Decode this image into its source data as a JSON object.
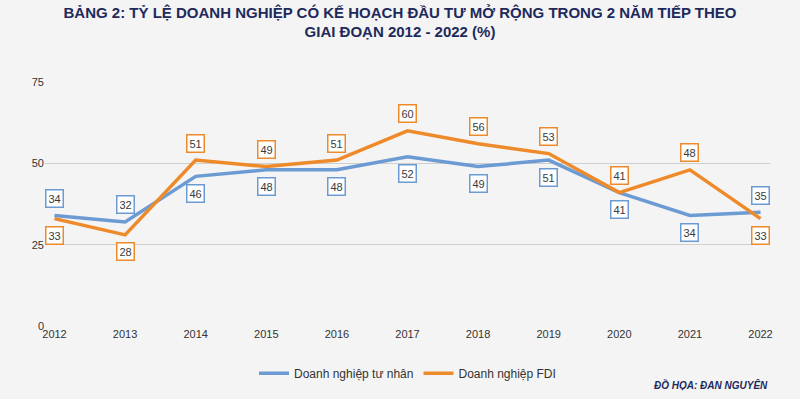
{
  "chart_data": {
    "type": "line",
    "title": "BẢNG 2: TỶ LỆ DOANH NGHIỆP CÓ KẾ HOẠCH ĐẦU TƯ MỞ RỘNG TRONG 2 NĂM TIẾP THEO",
    "subtitle": "GIAI ĐOẠN 2012 - 2022 (%)",
    "categories": [
      "2012",
      "2013",
      "2014",
      "2015",
      "2016",
      "2017",
      "2018",
      "2019",
      "2020",
      "2021",
      "2022"
    ],
    "series": [
      {
        "name": "Doanh nghiệp tư nhân",
        "color": "#6b9bd2",
        "values": [
          34,
          32,
          46,
          48,
          48,
          52,
          49,
          51,
          41,
          34,
          35
        ]
      },
      {
        "name": "Doanh nghiệp FDI",
        "color": "#ef8a2a",
        "values": [
          33,
          28,
          51,
          49,
          51,
          60,
          56,
          53,
          41,
          48,
          33
        ]
      }
    ],
    "ylim": [
      0,
      75
    ],
    "yticks": [
      0,
      25,
      50,
      75
    ],
    "grid": true,
    "legend": "bottom",
    "data_labels": true,
    "annotations": [
      "ĐỒ HỌA: ĐAN NGUYÊN"
    ]
  }
}
